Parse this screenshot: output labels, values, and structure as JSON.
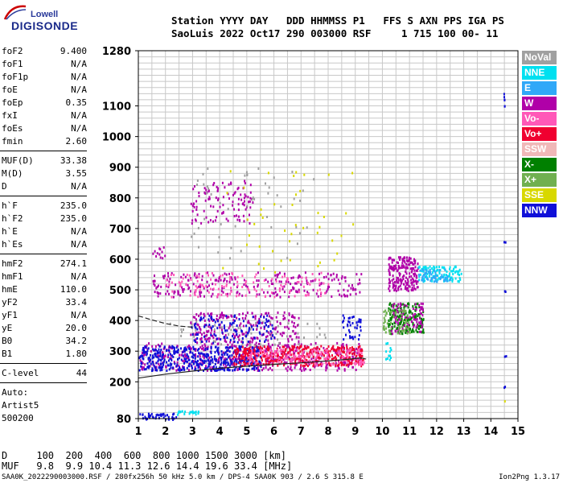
{
  "logo": {
    "line1": "Lowell",
    "line2": "DIGISONDE"
  },
  "header": {
    "line1": "Station YYYY DAY   DDD HHMMSS P1   FFS S AXN PPS IGA PS",
    "line2": "SaoLuis 2022 Oct17 290 003000 RSF     1 715 100 00- 11"
  },
  "params": [
    {
      "label": "foF2",
      "value": "9.400"
    },
    {
      "label": "foF1",
      "value": "N/A"
    },
    {
      "label": "foF1p",
      "value": "N/A"
    },
    {
      "label": "foE",
      "value": "N/A"
    },
    {
      "label": "foEp",
      "value": "0.35"
    },
    {
      "label": "fxI",
      "value": "N/A"
    },
    {
      "label": "foEs",
      "value": "N/A"
    },
    {
      "label": "fmin",
      "value": "2.60"
    },
    {
      "label": "MUF(D)",
      "value": "33.38"
    },
    {
      "label": "M(D)",
      "value": "3.55"
    },
    {
      "label": "D",
      "value": "N/A"
    },
    {
      "label": "h`F",
      "value": "235.0"
    },
    {
      "label": "h`F2",
      "value": "235.0"
    },
    {
      "label": "h`E",
      "value": "N/A"
    },
    {
      "label": "h`Es",
      "value": "N/A"
    },
    {
      "label": "hmF2",
      "value": "274.1"
    },
    {
      "label": "hmF1",
      "value": "N/A"
    },
    {
      "label": "hmE",
      "value": "110.0"
    },
    {
      "label": "yF2",
      "value": "33.4"
    },
    {
      "label": "yF1",
      "value": "N/A"
    },
    {
      "label": "yE",
      "value": "20.0"
    },
    {
      "label": "B0",
      "value": "34.2"
    },
    {
      "label": "B1",
      "value": "1.80"
    },
    {
      "label": "C-level",
      "value": "44"
    }
  ],
  "notes": [
    "Auto:",
    "Artist5",
    "500200"
  ],
  "legend": [
    {
      "label": "NoVal",
      "bg": "#a0a0a0",
      "fg": "#ffffff"
    },
    {
      "label": "NNE",
      "bg": "#00e0f0",
      "fg": "#ffffff"
    },
    {
      "label": "E",
      "bg": "#30a8f8",
      "fg": "#ffffff"
    },
    {
      "label": "W",
      "bg": "#b000a8",
      "fg": "#ffffff"
    },
    {
      "label": "Vo-",
      "bg": "#ff58b8",
      "fg": "#ffffff"
    },
    {
      "label": "Vo+",
      "bg": "#f00030",
      "fg": "#ffffff"
    },
    {
      "label": "SSW",
      "bg": "#f0b8b8",
      "fg": "#ffffff"
    },
    {
      "label": "X-",
      "bg": "#008000",
      "fg": "#ffffff"
    },
    {
      "label": "X+",
      "bg": "#70b050",
      "fg": "#ffffff"
    },
    {
      "label": "SSE",
      "bg": "#d8d800",
      "fg": "#ffffff"
    },
    {
      "label": "NNW",
      "bg": "#1010d8",
      "fg": "#ffffff"
    }
  ],
  "table": {
    "line1": "D     100  200  400  600  800 1000 1500 3000 [km]",
    "line2": "MUF   9.8  9.9 10.4 11.3 12.6 14.4 19.6 33.4 [MHz]"
  },
  "footer": {
    "left": "SAA0K_2022290003000.RSF / 280fx256h 50 kHz 5.0 km / DPS-4 SAA0K 903 / 2.6 S 315.8 E",
    "right": "Ion2Png 1.3.17"
  },
  "chart_data": {
    "type": "scatter",
    "title": "",
    "xlabel": "",
    "ylabel": "",
    "xlim": [
      1,
      15
    ],
    "ylim": [
      80,
      1280
    ],
    "x_ticks": [
      1,
      2,
      3,
      4,
      5,
      6,
      7,
      8,
      9,
      10,
      11,
      12,
      13,
      14,
      15
    ],
    "y_ticks": [
      80,
      200,
      300,
      400,
      500,
      600,
      700,
      800,
      900,
      1000,
      1100,
      1280
    ],
    "x_unit": "MHz",
    "y_unit": "km",
    "grid": true,
    "legend_position": "right",
    "profile_curve": {
      "x": [
        1.0,
        2.0,
        3.0,
        4.0,
        5.0,
        6.0,
        7.0,
        8.0,
        8.8,
        9.2,
        9.4
      ],
      "y": [
        212,
        225,
        235,
        244,
        251,
        257,
        262,
        268,
        274,
        278,
        274
      ]
    },
    "dashed_curve": {
      "x": [
        1.0,
        1.5,
        2.0,
        2.5,
        3.0
      ],
      "y": [
        415,
        402,
        390,
        382,
        378
      ]
    },
    "clusters": [
      {
        "name": "W",
        "color": "#b000a8",
        "x": [
          1.0,
          9.2
        ],
        "y": [
          240,
          330
        ],
        "n": 450
      },
      {
        "name": "NNW",
        "color": "#1010d8",
        "x": [
          1.0,
          5.5
        ],
        "y": [
          240,
          320
        ],
        "n": 450
      },
      {
        "name": "Vo+",
        "color": "#f00030",
        "x": [
          4.5,
          9.3
        ],
        "y": [
          255,
          320
        ],
        "n": 380
      },
      {
        "name": "Vo-",
        "color": "#ff58b8",
        "x": [
          5.0,
          9.3
        ],
        "y": [
          260,
          310
        ],
        "n": 160
      },
      {
        "name": "NoVal",
        "color": "#a0a0a0",
        "x": [
          2.0,
          8.0
        ],
        "y": [
          320,
          400
        ],
        "n": 70
      },
      {
        "name": "W",
        "color": "#b000a8",
        "x": [
          2.9,
          6.9
        ],
        "y": [
          330,
          430
        ],
        "n": 220
      },
      {
        "name": "NNW",
        "color": "#1010d8",
        "x": [
          2.9,
          6.0
        ],
        "y": [
          330,
          420
        ],
        "n": 120
      },
      {
        "name": "W",
        "color": "#b000a8",
        "x": [
          1.5,
          9.2
        ],
        "y": [
          480,
          560
        ],
        "n": 250
      },
      {
        "name": "Vo-",
        "color": "#ff58b8",
        "x": [
          2.0,
          8.0
        ],
        "y": [
          480,
          560
        ],
        "n": 130
      },
      {
        "name": "W",
        "color": "#b000a8",
        "x": [
          2.9,
          5.2
        ],
        "y": [
          720,
          860
        ],
        "n": 110
      },
      {
        "name": "NoVal",
        "color": "#a0a0a0",
        "x": [
          2.9,
          7.5
        ],
        "y": [
          600,
          900
        ],
        "n": 50
      },
      {
        "name": "SSE",
        "color": "#d8d800",
        "x": [
          4.0,
          9.0
        ],
        "y": [
          560,
          900
        ],
        "n": 45
      },
      {
        "name": "NNW",
        "color": "#1010d8",
        "x": [
          8.5,
          9.2
        ],
        "y": [
          340,
          420
        ],
        "n": 40
      },
      {
        "name": "W",
        "color": "#b000a8",
        "x": [
          10.2,
          11.3
        ],
        "y": [
          500,
          610
        ],
        "n": 200
      },
      {
        "name": "X-",
        "color": "#008000",
        "x": [
          10.2,
          11.5
        ],
        "y": [
          360,
          460
        ],
        "n": 180
      },
      {
        "name": "W",
        "color": "#b000a8",
        "x": [
          10.2,
          11.5
        ],
        "y": [
          360,
          460
        ],
        "n": 90
      },
      {
        "name": "X+",
        "color": "#70b050",
        "x": [
          10.0,
          11.0
        ],
        "y": [
          360,
          440
        ],
        "n": 60
      },
      {
        "name": "NNE",
        "color": "#00e0f0",
        "x": [
          11.3,
          12.9
        ],
        "y": [
          530,
          580
        ],
        "n": 110
      },
      {
        "name": "E",
        "color": "#30a8f8",
        "x": [
          11.3,
          12.5
        ],
        "y": [
          530,
          570
        ],
        "n": 50
      },
      {
        "name": "NNW",
        "color": "#1010d8",
        "x": [
          1.0,
          2.4
        ],
        "y": [
          80,
          100
        ],
        "n": 45
      },
      {
        "name": "NNE",
        "color": "#00e0f0",
        "x": [
          2.4,
          3.2
        ],
        "y": [
          95,
          110
        ],
        "n": 20
      },
      {
        "name": "W",
        "color": "#b000a8",
        "x": [
          1.5,
          2.0
        ],
        "y": [
          600,
          650
        ],
        "n": 12
      },
      {
        "name": "NNE",
        "color": "#00e0f0",
        "x": [
          10.1,
          10.3
        ],
        "y": [
          270,
          330
        ],
        "n": 12
      },
      {
        "name": "NNW",
        "color": "#1010d8",
        "x": [
          14.45,
          14.55
        ],
        "y": [
          1120,
          1160
        ],
        "n": 4
      },
      {
        "name": "NNW",
        "color": "#1010d8",
        "x": [
          14.45,
          14.55
        ],
        "y": [
          1100,
          1105
        ],
        "n": 2
      },
      {
        "name": "NNW",
        "color": "#1010d8",
        "x": [
          14.45,
          14.55
        ],
        "y": [
          655,
          660
        ],
        "n": 2
      },
      {
        "name": "NNW",
        "color": "#1010d8",
        "x": [
          14.45,
          14.55
        ],
        "y": [
          490,
          500
        ],
        "n": 2
      },
      {
        "name": "NNW",
        "color": "#1010d8",
        "x": [
          14.45,
          14.55
        ],
        "y": [
          285,
          290
        ],
        "n": 2
      },
      {
        "name": "NNW",
        "color": "#1010d8",
        "x": [
          14.45,
          14.55
        ],
        "y": [
          180,
          190
        ],
        "n": 2
      },
      {
        "name": "SSE",
        "color": "#d8d800",
        "x": [
          14.45,
          14.55
        ],
        "y": [
          140,
          145
        ],
        "n": 1
      }
    ]
  }
}
